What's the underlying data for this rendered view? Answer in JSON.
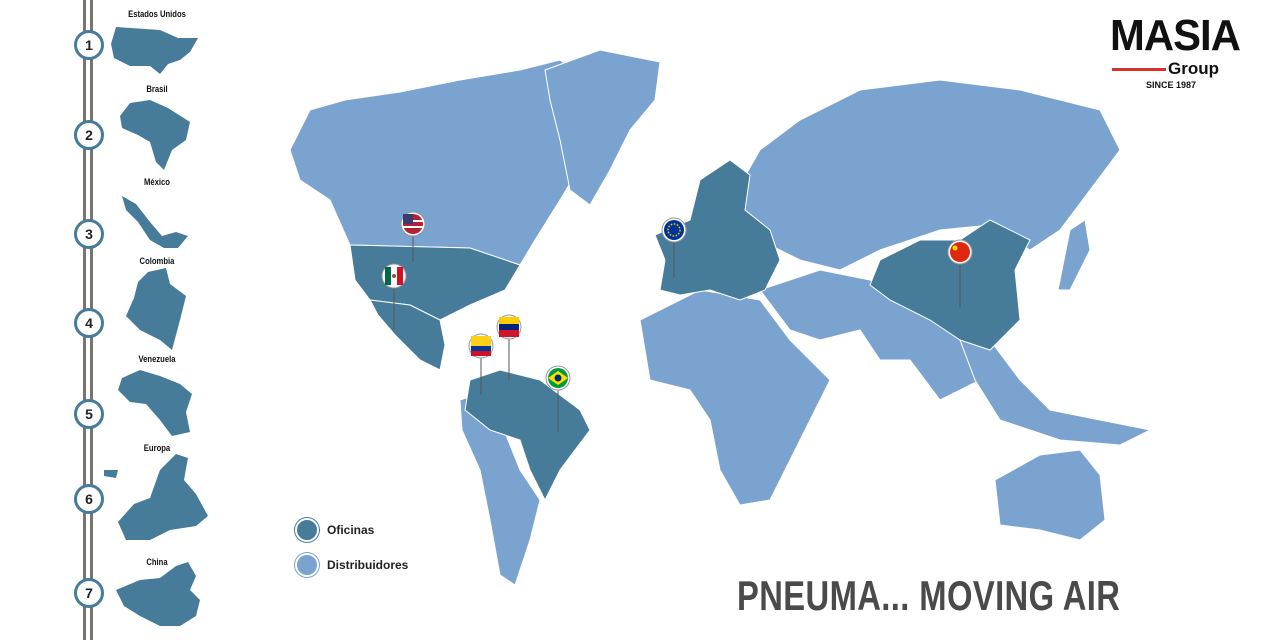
{
  "colors": {
    "office": "#467c9a",
    "distributor": "#7ba3cf",
    "rail": "#7a746e",
    "slogan": "#4a4a4a",
    "logo_accent": "#d8302b"
  },
  "logo": {
    "name": "MASIA",
    "sub": "Group",
    "since": "SINCE 1987"
  },
  "countries": [
    {
      "num": "1",
      "name": "Estados Unidos"
    },
    {
      "num": "2",
      "name": "Brasil"
    },
    {
      "num": "3",
      "name": "México"
    },
    {
      "num": "4",
      "name": "Colombia"
    },
    {
      "num": "5",
      "name": "Venezuela"
    },
    {
      "num": "6",
      "name": "Europa"
    },
    {
      "num": "7",
      "name": "China"
    }
  ],
  "legend": {
    "offices": "Oficinas",
    "distributors": "Distribuidores"
  },
  "slogan": "PNEUMA... MOVING AIR",
  "pins": [
    "usa-flag",
    "mexico-flag",
    "colombia-flag",
    "venezuela-flag",
    "brazil-flag",
    "eu-flag",
    "china-flag"
  ]
}
